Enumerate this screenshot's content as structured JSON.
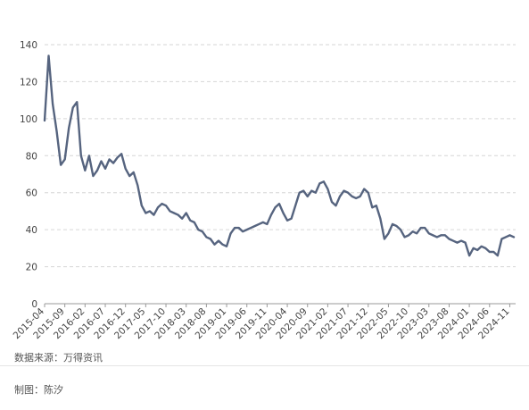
{
  "chart_data": {
    "type": "line",
    "title": "",
    "xlabel": "",
    "ylabel": "",
    "ylim": [
      0,
      140
    ],
    "yticks": [
      0,
      20,
      40,
      60,
      80,
      100,
      120,
      140
    ],
    "grid": "horizontal-dashed",
    "line_color": "#56647f",
    "xtick_labels": [
      "2015-04",
      "2015-09",
      "2016-02",
      "2016-07",
      "2016-12",
      "2017-05",
      "2017-10",
      "2018-03",
      "2018-08",
      "2019-01",
      "2019-06",
      "2019-11",
      "2020-04",
      "2020-09",
      "2021-02",
      "2021-07",
      "2021-12",
      "2022-05",
      "2022-10",
      "2023-03",
      "2023-08",
      "2024-01",
      "2024-06",
      "2024-11"
    ],
    "series": [
      {
        "x_start": "2015-04",
        "values": [
          99,
          134,
          108,
          93,
          75,
          78,
          95,
          106,
          109,
          80,
          72,
          80,
          69,
          72,
          77,
          73,
          78,
          76,
          79,
          81,
          73,
          69,
          71,
          64,
          53,
          49,
          50,
          48,
          52,
          54,
          53,
          50,
          49,
          48,
          46,
          49,
          45,
          44,
          40,
          39,
          36,
          35,
          32,
          34,
          32,
          31,
          38,
          41,
          41,
          39,
          40,
          41,
          42,
          43,
          44,
          43,
          48,
          52,
          54,
          49,
          45,
          46,
          53,
          60,
          61,
          58,
          61,
          60,
          65,
          66,
          62,
          55,
          53,
          58,
          61,
          60,
          58,
          57,
          58,
          62,
          60,
          52,
          53,
          46,
          35,
          38,
          43,
          42,
          40,
          36,
          37,
          39,
          38,
          41,
          41,
          38,
          37,
          36,
          37,
          37,
          35,
          34,
          33,
          34,
          33,
          26,
          30,
          29,
          31,
          30,
          28,
          28,
          26,
          35,
          36,
          37,
          36
        ]
      }
    ]
  },
  "footer": {
    "source": "数据来源：万得资讯",
    "author": "制图：陈汐"
  }
}
